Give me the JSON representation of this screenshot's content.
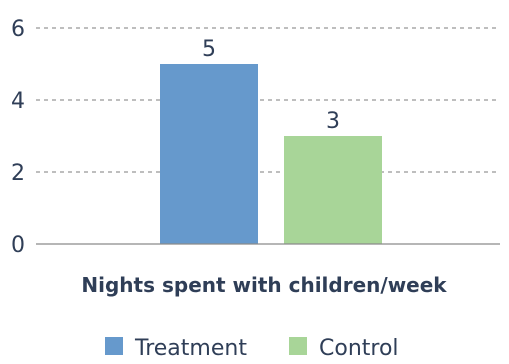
{
  "chart_data": {
    "type": "bar",
    "categories": [
      "Nights spent with children/week"
    ],
    "series": [
      {
        "name": "Treatment",
        "values": [
          5
        ],
        "color": "#6699cc"
      },
      {
        "name": "Control",
        "values": [
          3
        ],
        "color": "#a8d598"
      }
    ],
    "data_labels": [
      "5",
      "3"
    ],
    "xlabel": "Nights spent with children/week",
    "ylabel": "",
    "ylim": [
      0,
      6
    ],
    "yticks": [
      0,
      2,
      4,
      6
    ],
    "grid": true,
    "legend_position": "bottom"
  }
}
